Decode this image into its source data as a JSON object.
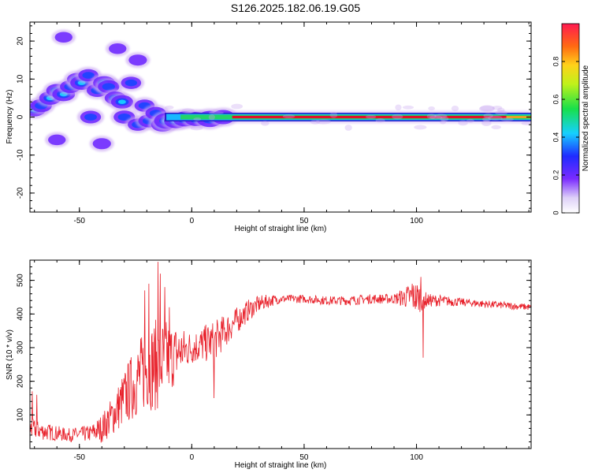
{
  "title": "S126.2025.182.06.19.G05",
  "chart_data": [
    {
      "type": "heatmap",
      "xlabel": "Height of straight line (km)",
      "ylabel": "Frequency (Hz)",
      "xlim": [
        -72,
        151
      ],
      "ylim": [
        -25,
        25
      ],
      "xticks": [
        -50,
        0,
        50,
        100
      ],
      "yticks": [
        -20,
        -10,
        0,
        10,
        20
      ],
      "colorbar": {
        "label": "Normalized spectral amplitude",
        "range": [
          0,
          1
        ],
        "ticks": [
          0,
          0.2,
          0.4,
          0.6,
          0.8
        ]
      },
      "colors": {
        "strong": "#e0102a",
        "mid": "#22d36a",
        "weak": "#2244ff",
        "faint": "#c9a6f2"
      },
      "ridge_frequency_hz": 0,
      "blobs": [
        {
          "x": -70,
          "f": 2,
          "a": 0.55
        },
        {
          "x": -67,
          "f": 3,
          "a": 0.45
        },
        {
          "x": -63,
          "f": 5,
          "a": 0.5
        },
        {
          "x": -60,
          "f": 7,
          "a": 0.45
        },
        {
          "x": -57,
          "f": 6,
          "a": 0.55
        },
        {
          "x": -54,
          "f": 8,
          "a": 0.4
        },
        {
          "x": -51,
          "f": 10,
          "a": 0.35
        },
        {
          "x": -49,
          "f": 9,
          "a": 0.55
        },
        {
          "x": -46,
          "f": 11,
          "a": 0.35
        },
        {
          "x": -45,
          "f": 0,
          "a": 0.4
        },
        {
          "x": -42,
          "f": 7,
          "a": 0.45
        },
        {
          "x": -39,
          "f": 9,
          "a": 0.5
        },
        {
          "x": -37,
          "f": 8,
          "a": 0.45
        },
        {
          "x": -34,
          "f": 5,
          "a": 0.45
        },
        {
          "x": -31,
          "f": 4,
          "a": 0.5
        },
        {
          "x": -30,
          "f": 0,
          "a": 0.45
        },
        {
          "x": -27,
          "f": 9,
          "a": 0.35
        },
        {
          "x": -24,
          "f": -2,
          "a": 0.35
        },
        {
          "x": -21,
          "f": 3,
          "a": 0.35
        },
        {
          "x": -19,
          "f": -1,
          "a": 0.45
        },
        {
          "x": -16,
          "f": 1,
          "a": 0.4
        },
        {
          "x": -13,
          "f": -2,
          "a": 0.55
        },
        {
          "x": -11,
          "f": -1,
          "a": 0.8
        },
        {
          "x": -7,
          "f": -1,
          "a": 0.65
        },
        {
          "x": -3,
          "f": -0.5,
          "a": 0.7
        },
        {
          "x": 2,
          "f": -0.5,
          "a": 0.6
        },
        {
          "x": 8,
          "f": -0.5,
          "a": 0.85
        },
        {
          "x": 14,
          "f": 0,
          "a": 0.6
        },
        {
          "x": -33,
          "f": 18,
          "a": 0.15
        },
        {
          "x": -24,
          "f": 15,
          "a": 0.2
        },
        {
          "x": -57,
          "f": 21,
          "a": 0.15
        },
        {
          "x": -40,
          "f": -7,
          "a": 0.2
        },
        {
          "x": -60,
          "f": -6,
          "a": 0.15
        }
      ]
    },
    {
      "type": "line",
      "xlabel": "Height of straight line (km)",
      "ylabel": "SNR (10 * v/v)",
      "xlim": [
        -72,
        151
      ],
      "ylim": [
        0,
        560
      ],
      "xticks": [
        -50,
        0,
        50,
        100
      ],
      "yticks": [
        100,
        200,
        300,
        400,
        500
      ],
      "color": "#e8202a",
      "envelope": {
        "x": [
          -72,
          -65,
          -55,
          -45,
          -40,
          -35,
          -30,
          -25,
          -20,
          -15,
          -10,
          -5,
          0,
          5,
          10,
          15,
          20,
          25,
          30,
          35,
          40,
          50,
          60,
          70,
          80,
          90,
          95,
          100,
          105,
          110,
          120,
          130,
          140,
          151
        ],
        "y": [
          60,
          50,
          40,
          45,
          60,
          100,
          150,
          200,
          240,
          250,
          270,
          290,
          300,
          310,
          320,
          350,
          380,
          410,
          430,
          440,
          445,
          445,
          440,
          440,
          445,
          445,
          450,
          450,
          440,
          440,
          435,
          430,
          425,
          420
        ]
      },
      "noise": {
        "x": [
          -72,
          -55,
          -45,
          -35,
          -25,
          -15,
          -10,
          -5,
          0,
          10,
          20,
          30,
          40,
          90,
          100,
          105,
          120,
          151
        ],
        "amp": [
          30,
          20,
          25,
          60,
          110,
          140,
          110,
          70,
          50,
          60,
          40,
          25,
          12,
          15,
          50,
          20,
          12,
          10
        ]
      },
      "spikes": [
        {
          "x": -71,
          "y": 170
        },
        {
          "x": -69,
          "y": 160
        },
        {
          "x": -21,
          "y": 470
        },
        {
          "x": -19,
          "y": 490
        },
        {
          "x": -15,
          "y": 555
        },
        {
          "x": -14,
          "y": 520
        },
        {
          "x": -12,
          "y": 480
        },
        {
          "x": -10,
          "y": 420
        },
        {
          "x": 10,
          "y": 150
        },
        {
          "x": 98,
          "y": 490
        },
        {
          "x": 102,
          "y": 510
        },
        {
          "x": 103,
          "y": 270
        }
      ]
    }
  ]
}
